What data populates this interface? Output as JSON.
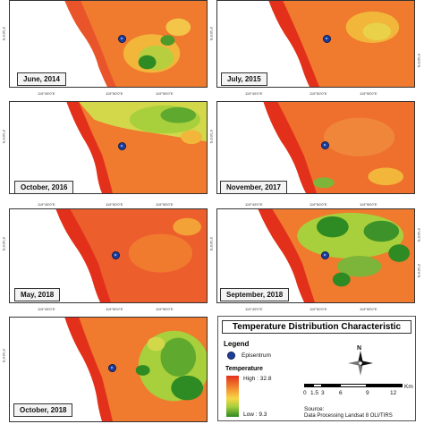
{
  "panels": [
    {
      "label": "June, 2014"
    },
    {
      "label": "July, 2015"
    },
    {
      "label": "October, 2016"
    },
    {
      "label": "November, 2017"
    },
    {
      "label": "May, 2018"
    },
    {
      "label": "September, 2018"
    },
    {
      "label": "October, 2018"
    }
  ],
  "ticks": {
    "lon_a": "119°45'0\"E",
    "lon_b": "119°50'0\"E",
    "lon_c": "119°55'0\"E",
    "lat": "0°10'0\"S"
  },
  "legend": {
    "title": "Temperature Distribution Characteristic",
    "heading": "Legend",
    "epicenter_label": "Episentrum",
    "temperature_heading": "Temperature",
    "high_label": "High : 32.8",
    "low_label": "Low : 9.3",
    "scale_ticks": [
      "0",
      "1.5",
      "3",
      "6",
      "9",
      "12"
    ],
    "scale_unit": "Km",
    "north_label": "N",
    "source_line1": "Source:",
    "source_line2": "Data Processing Landsat 8 OLI/TIRS"
  },
  "colors": {
    "high": "#e3301b",
    "mid": "#f7d645",
    "low": "#2e8a22",
    "epicenter": "#1f3f9e"
  }
}
